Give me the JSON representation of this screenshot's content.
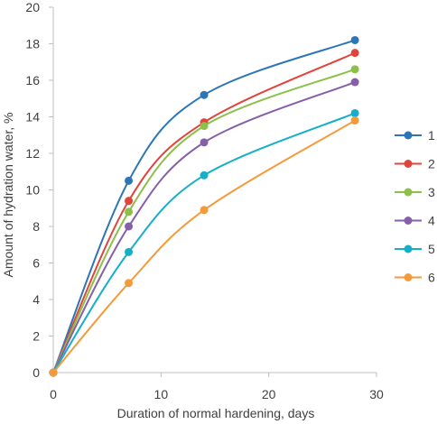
{
  "chart_data": {
    "type": "line",
    "xlabel": "Duration of normal hardening, days",
    "ylabel": "Amount of hydration water, %",
    "xlim": [
      0,
      30
    ],
    "ylim": [
      0,
      20
    ],
    "x_ticks": [
      0,
      10,
      20,
      30
    ],
    "y_ticks": [
      0,
      2,
      4,
      6,
      8,
      10,
      12,
      14,
      16,
      18,
      20
    ],
    "grid": false,
    "legend_position": "right",
    "x": [
      0,
      7,
      14,
      28
    ],
    "series": [
      {
        "name": "1",
        "color": "#2E75B6",
        "values": [
          0,
          10.5,
          15.2,
          18.2
        ]
      },
      {
        "name": "2",
        "color": "#E0443A",
        "values": [
          0,
          9.4,
          13.7,
          17.5
        ]
      },
      {
        "name": "3",
        "color": "#8DC04A",
        "values": [
          0,
          8.8,
          13.5,
          16.6
        ]
      },
      {
        "name": "4",
        "color": "#8560A8",
        "values": [
          0,
          8.0,
          12.6,
          15.9
        ]
      },
      {
        "name": "5",
        "color": "#17AFC8",
        "values": [
          0,
          6.6,
          10.8,
          14.2
        ]
      },
      {
        "name": "6",
        "color": "#F59A3B",
        "values": [
          0,
          4.9,
          8.9,
          13.8
        ]
      }
    ]
  }
}
